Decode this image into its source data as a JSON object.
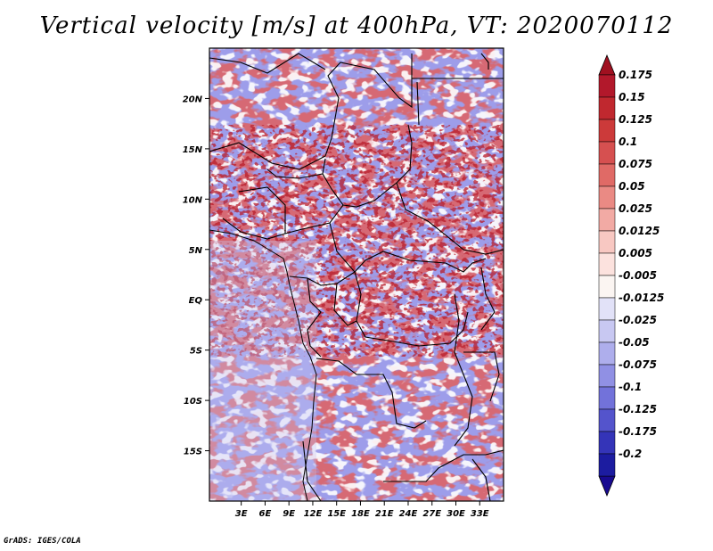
{
  "title": "Vertical velocity [m/s] at 400hPa, VT: 2020070112",
  "footer": "GrADS: IGES/COLA",
  "map": {
    "lon_range": [
      -1,
      36
    ],
    "lat_range": [
      -20,
      25
    ],
    "lat_ticks": [
      {
        "lat": 20,
        "label": "20N"
      },
      {
        "lat": 15,
        "label": "15N"
      },
      {
        "lat": 10,
        "label": "10N"
      },
      {
        "lat": 5,
        "label": "5N"
      },
      {
        "lat": 0,
        "label": "EQ"
      },
      {
        "lat": -5,
        "label": "5S"
      },
      {
        "lat": -10,
        "label": "10S"
      },
      {
        "lat": -15,
        "label": "15S"
      }
    ],
    "lon_ticks": [
      {
        "lon": 3,
        "label": "3E"
      },
      {
        "lon": 6,
        "label": "6E"
      },
      {
        "lon": 9,
        "label": "9E"
      },
      {
        "lon": 12,
        "label": "12E"
      },
      {
        "lon": 15,
        "label": "15E"
      },
      {
        "lon": 18,
        "label": "18E"
      },
      {
        "lon": 21,
        "label": "21E"
      },
      {
        "lon": 24,
        "label": "24E"
      },
      {
        "lon": 27,
        "label": "27E"
      },
      {
        "lon": 30,
        "label": "30E"
      },
      {
        "lon": 33,
        "label": "33E"
      }
    ]
  },
  "colorbar": {
    "levels": [
      {
        "label": "0.175",
        "color": "#b2182b"
      },
      {
        "label": "0.15",
        "color": "#c0282f"
      },
      {
        "label": "0.125",
        "color": "#cc3a3a"
      },
      {
        "label": "0.1",
        "color": "#d65050"
      },
      {
        "label": "0.075",
        "color": "#e06a66"
      },
      {
        "label": "0.05",
        "color": "#ea8a84"
      },
      {
        "label": "0.025",
        "color": "#f2aaa4"
      },
      {
        "label": "0.0125",
        "color": "#f8c8c2"
      },
      {
        "label": "0.005",
        "color": "#fce2de"
      },
      {
        "label": "-0.005",
        "color": "#fbf5f2"
      },
      {
        "label": "-0.0125",
        "color": "#e2e2f8"
      },
      {
        "label": "-0.025",
        "color": "#c8c8f2"
      },
      {
        "label": "-0.05",
        "color": "#aeaeec"
      },
      {
        "label": "-0.075",
        "color": "#9090e4"
      },
      {
        "label": "-0.1",
        "color": "#7272da"
      },
      {
        "label": "-0.125",
        "color": "#5454cc"
      },
      {
        "label": "-0.175",
        "color": "#3434b8"
      },
      {
        "label": "-0.2",
        "color": "#1c1ca0"
      }
    ],
    "top_color": "#a01020",
    "bottom_color": "#180a90"
  },
  "colors": {
    "positive": "#e05858",
    "negative": "#6a6ae0",
    "neutral": "#ffffff"
  }
}
